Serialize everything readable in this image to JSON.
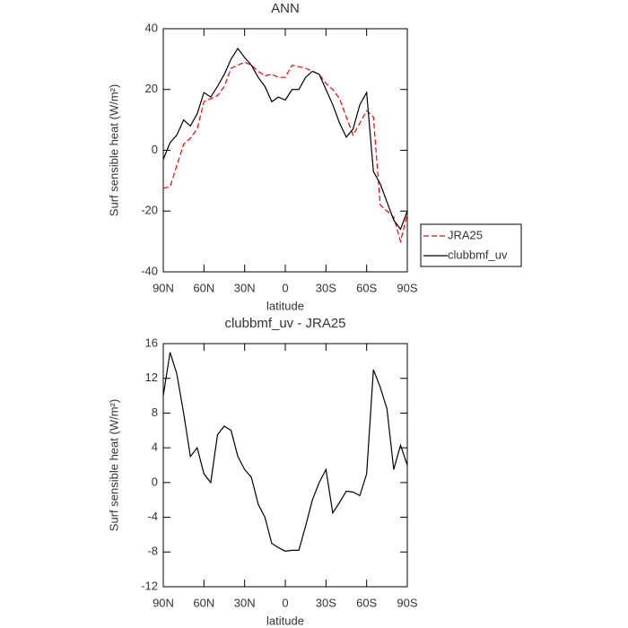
{
  "chart_data": [
    {
      "type": "line",
      "title": "ANN",
      "x_label": "latitude",
      "y_label": "Surf sensible heat (W/m²)",
      "x": [
        90,
        85,
        80,
        75,
        70,
        65,
        60,
        55,
        50,
        45,
        40,
        35,
        30,
        25,
        20,
        15,
        10,
        5,
        0,
        -5,
        -10,
        -15,
        -20,
        -25,
        -30,
        -35,
        -40,
        -45,
        -50,
        -55,
        -60,
        -65,
        -70,
        -75,
        -80,
        -85,
        -90
      ],
      "series": [
        {
          "name": "JRA25",
          "color": "#ff0000",
          "line_style": "dashed",
          "values": [
            -12.5,
            -12,
            -5,
            2,
            4,
            7,
            16,
            17,
            18,
            21,
            27,
            28,
            29,
            28,
            26,
            24.5,
            25,
            24,
            24,
            28,
            27.5,
            27,
            26,
            25,
            22,
            20,
            17,
            11,
            5,
            9,
            13,
            11,
            -18,
            -20,
            -22,
            -30,
            -21
          ]
        },
        {
          "name": "clubbmf_uv",
          "color": "#000000",
          "line_style": "solid",
          "values": [
            -3,
            2.5,
            5,
            10,
            8,
            12,
            19,
            17.5,
            21,
            25,
            30,
            33.5,
            30.5,
            28,
            24,
            21,
            16,
            17.5,
            16.5,
            20,
            20,
            24,
            26,
            25,
            20,
            15,
            9,
            4.3,
            7,
            15,
            19,
            -7,
            -11,
            -17,
            -23,
            -26,
            -20
          ]
        }
      ],
      "xlim": [
        90,
        -90
      ],
      "xticks": [
        {
          "value": 90,
          "label": "90N"
        },
        {
          "value": 60,
          "label": "60N"
        },
        {
          "value": 30,
          "label": "30N"
        },
        0,
        {
          "value": -30,
          "label": "30S"
        },
        {
          "value": -60,
          "label": "60S"
        },
        {
          "value": -90,
          "label": "90S"
        }
      ],
      "ylim": [
        -40,
        40
      ],
      "yticks": [
        -40,
        -20,
        0,
        20,
        40
      ],
      "legend": "right"
    },
    {
      "type": "line",
      "title": "clubbmf_uv - JRA25",
      "x_label": "latitude",
      "y_label": "Surf sensible heat (W/m²)",
      "x": [
        90,
        85,
        80,
        75,
        70,
        65,
        60,
        55,
        50,
        45,
        40,
        35,
        30,
        25,
        20,
        15,
        10,
        5,
        0,
        -5,
        -10,
        -15,
        -20,
        -25,
        -30,
        -35,
        -40,
        -45,
        -50,
        -55,
        -60,
        -65,
        -70,
        -75,
        -80,
        -85,
        -90
      ],
      "series": [
        {
          "color": "#000000",
          "line_style": "solid",
          "values": [
            10,
            15,
            12.5,
            8,
            3,
            4,
            1,
            0,
            5.5,
            6.5,
            6,
            3,
            1.5,
            0.6,
            -2.5,
            -4,
            -7,
            -7.5,
            -7.9,
            -7.8,
            -7.8,
            -5,
            -2,
            0,
            1.5,
            -3.5,
            -2.3,
            -1,
            -1.1,
            -1.5,
            1,
            13,
            11,
            8.5,
            1.5,
            4.3,
            2
          ]
        }
      ],
      "xlim": [
        90,
        -90
      ],
      "xticks": [
        {
          "value": 90,
          "label": "90N"
        },
        {
          "value": 60,
          "label": "60N"
        },
        {
          "value": 30,
          "label": "30N"
        },
        0,
        {
          "value": -30,
          "label": "30S"
        },
        {
          "value": -60,
          "label": "60S"
        },
        {
          "value": -90,
          "label": "90S"
        }
      ],
      "ylim": [
        -12,
        16
      ],
      "yticks": [
        -12,
        -8,
        -4,
        0,
        4,
        8,
        12,
        16
      ]
    }
  ]
}
